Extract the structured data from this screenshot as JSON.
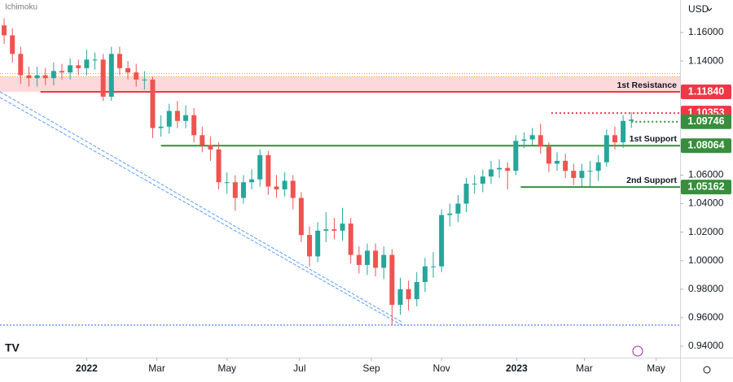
{
  "chart_data": {
    "type": "candlestick",
    "indicator": "Ichimoku",
    "currency": "USD",
    "open": [
      1.165,
      1.158,
      1.145,
      1.13,
      1.128,
      1.13,
      1.128,
      1.133,
      1.132,
      1.137,
      1.135,
      1.141,
      1.141,
      1.115,
      1.145,
      1.135,
      1.132,
      1.127,
      1.127,
      1.093,
      1.094,
      1.105,
      1.098,
      1.102,
      1.088,
      1.081,
      1.078,
      1.055,
      1.055,
      1.044,
      1.055,
      1.057,
      1.074,
      1.052,
      1.05,
      1.056,
      1.044,
      1.018,
      1.003,
      1.021,
      1.022,
      1.021,
      1.026,
      1.004,
      0.997,
      1.007,
      0.995,
      1.004,
      0.969,
      0.98,
      0.973,
      0.985,
      0.996,
      0.996,
      1.032,
      1.033,
      1.04,
      1.054,
      1.054,
      1.059,
      1.064,
      1.065,
      1.063,
      1.084,
      1.085,
      1.088,
      1.08,
      1.068,
      1.07,
      1.063,
      1.058,
      1.063,
      1.063,
      1.069,
      1.088,
      1.083,
      1.098
    ],
    "high": [
      1.17,
      1.163,
      1.15,
      1.136,
      1.136,
      1.135,
      1.139,
      1.138,
      1.142,
      1.141,
      1.148,
      1.146,
      1.145,
      1.15,
      1.15,
      1.14,
      1.138,
      1.133,
      1.129,
      1.102,
      1.11,
      1.112,
      1.109,
      1.107,
      1.094,
      1.087,
      1.083,
      1.062,
      1.06,
      1.06,
      1.064,
      1.078,
      1.077,
      1.06,
      1.062,
      1.06,
      1.048,
      1.024,
      1.027,
      1.034,
      1.03,
      1.037,
      1.03,
      1.01,
      1.012,
      1.012,
      1.01,
      1.008,
      0.988,
      0.986,
      0.992,
      1.002,
      1.006,
      1.036,
      1.04,
      1.046,
      1.058,
      1.06,
      1.064,
      1.07,
      1.071,
      1.069,
      1.088,
      1.09,
      1.093,
      1.096,
      1.083,
      1.076,
      1.075,
      1.068,
      1.068,
      1.07,
      1.074,
      1.092,
      1.094,
      1.102,
      1.104
    ],
    "low": [
      1.152,
      1.139,
      1.124,
      1.122,
      1.122,
      1.123,
      1.123,
      1.127,
      1.127,
      1.13,
      1.13,
      1.134,
      1.112,
      1.112,
      1.13,
      1.127,
      1.122,
      1.12,
      1.086,
      1.087,
      1.089,
      1.093,
      1.093,
      1.083,
      1.076,
      1.07,
      1.05,
      1.047,
      1.035,
      1.04,
      1.05,
      1.052,
      1.046,
      1.044,
      1.045,
      1.036,
      1.013,
      0.996,
      0.999,
      1.013,
      1.015,
      1.014,
      0.998,
      0.991,
      0.99,
      0.989,
      0.987,
      0.955,
      0.962,
      0.965,
      0.968,
      0.978,
      0.988,
      0.992,
      1.024,
      1.027,
      1.034,
      1.047,
      1.048,
      1.054,
      1.058,
      1.05,
      1.06,
      1.079,
      1.081,
      1.075,
      1.062,
      1.063,
      1.058,
      1.053,
      1.052,
      1.052,
      1.056,
      1.066,
      1.078,
      1.079,
      1.093
    ],
    "close": [
      1.158,
      1.145,
      1.13,
      1.128,
      1.13,
      1.128,
      1.133,
      1.132,
      1.137,
      1.135,
      1.141,
      1.141,
      1.115,
      1.145,
      1.135,
      1.132,
      1.127,
      1.127,
      1.093,
      1.094,
      1.105,
      1.098,
      1.102,
      1.088,
      1.081,
      1.078,
      1.055,
      1.055,
      1.044,
      1.055,
      1.057,
      1.074,
      1.052,
      1.05,
      1.056,
      1.044,
      1.018,
      1.003,
      1.021,
      1.022,
      1.021,
      1.026,
      1.004,
      0.997,
      1.007,
      0.995,
      1.004,
      0.969,
      0.98,
      0.973,
      0.985,
      0.996,
      0.996,
      1.032,
      1.033,
      1.04,
      1.054,
      1.054,
      1.059,
      1.064,
      1.065,
      1.063,
      1.084,
      1.085,
      1.088,
      1.08,
      1.068,
      1.07,
      1.063,
      1.058,
      1.063,
      1.063,
      1.069,
      1.088,
      1.083,
      1.098,
      1.099
    ],
    "up_color": "#26a69a",
    "down_color": "#ef5350",
    "xlim": [
      -0.5,
      81.9
    ],
    "xticks": [
      {
        "value": 10,
        "label": "2022"
      },
      {
        "value": 18.5,
        "label": "Mar"
      },
      {
        "value": 27,
        "label": "May"
      },
      {
        "value": 35.8,
        "label": "Jul"
      },
      {
        "value": 44.5,
        "label": "Sep"
      },
      {
        "value": 53,
        "label": "Nov"
      },
      {
        "value": 62.1,
        "label": "2023"
      },
      {
        "value": 70.3,
        "label": "Mar"
      },
      {
        "value": 79,
        "label": "May"
      }
    ],
    "ylim": [
      0.932,
      1.1828
    ],
    "yticks": [
      {
        "value": 0.94,
        "label": "0.94000"
      },
      {
        "value": 0.96,
        "label": "0.96000"
      },
      {
        "value": 0.98,
        "label": "0.98000"
      },
      {
        "value": 1.0,
        "label": "1.00000"
      },
      {
        "value": 1.02,
        "label": "1.02000"
      },
      {
        "value": 1.04,
        "label": "1.04000"
      },
      {
        "value": 1.06,
        "label": "1.06000"
      },
      {
        "value": 1.14,
        "label": "1.14000"
      },
      {
        "value": 1.16,
        "label": "1.16000"
      }
    ],
    "resistance_zone": [
      1.1184,
      1.129
    ],
    "levels": [
      {
        "name": "1st Resistance",
        "value": 1.1184,
        "label": "1.11840",
        "color": "#f23645"
      },
      {
        "value": 1.10353,
        "label": "1.10353",
        "color": "#f23645"
      },
      {
        "value": 1.09746,
        "label": "1.09746",
        "color": "#388e3c"
      },
      {
        "name": "1st Support",
        "value": 1.08064,
        "label": "1.08064",
        "color": "#388e3c"
      },
      {
        "name": "2nd Support",
        "value": 1.05162,
        "label": "1.05162",
        "color": "#388e3c"
      }
    ]
  }
}
